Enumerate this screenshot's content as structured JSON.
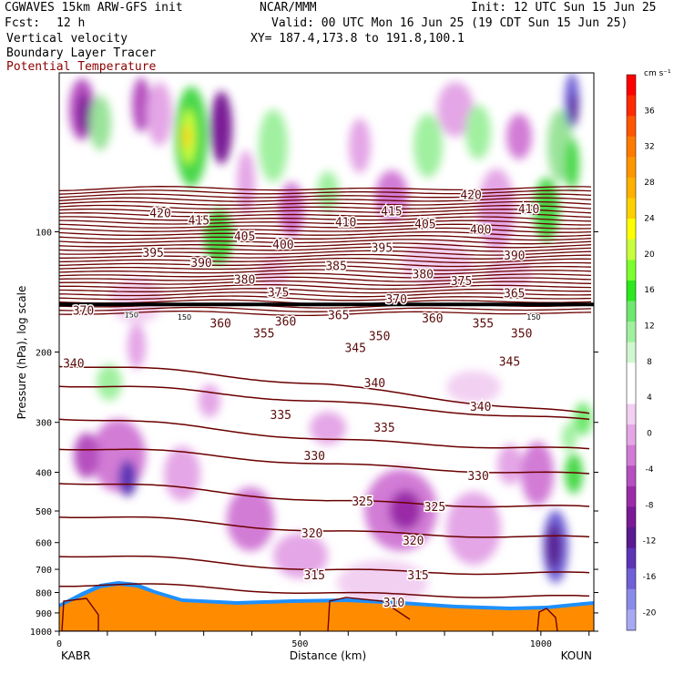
{
  "header": {
    "model": "CGWAVES 15km ARW-GFS init",
    "center": "NCAR/MMM",
    "init": "Init: 12 UTC Sun 15 Jun 25",
    "fcst_label": "Fcst:",
    "fcst_value": "12 h",
    "valid": "Valid: 00 UTC Mon 16 Jun 25 (19 CDT Sun 15 Jun 25)",
    "field1": "Vertical velocity",
    "field2": "Boundary Layer Tracer",
    "field3": "Potential Temperature",
    "xy": "XY= 187.4,173.8 to 191.8,100.1"
  },
  "colors": {
    "theta": "#6b0000",
    "field3_text": "#8b0000",
    "tracer": "#ff8c00",
    "tropopause": "#000000"
  },
  "chart_data": {
    "type": "heatmap",
    "xlabel": "Distance (km)",
    "ylabel": "Pressure (hPa), log scale",
    "x_ticks": [
      0,
      500,
      1000
    ],
    "xlim": [
      0,
      1110
    ],
    "y_ticks": [
      100,
      200,
      300,
      400,
      500,
      600,
      700,
      800,
      900,
      1000
    ],
    "y_scale": "log",
    "ylim": [
      1000,
      40
    ],
    "endpoints": {
      "left": "KABR",
      "right": "KOUN"
    },
    "colorbar": {
      "unit_label": "cm s⁻¹",
      "ticks": [
        36,
        32,
        28,
        24,
        20,
        16,
        12,
        8,
        4,
        0,
        -4,
        -8,
        -12,
        -16,
        -20
      ],
      "colors": [
        "#ff0000",
        "#ff2a00",
        "#ff5500",
        "#ff7a00",
        "#ff9600",
        "#ffb000",
        "#ffd000",
        "#ffff00",
        "#c8ff3c",
        "#7dff2d",
        "#2de81e",
        "#6fe86f",
        "#a0f0a0",
        "#d0f8d0",
        "#ffffff",
        "#ffffff",
        "#f2d0f2",
        "#e4a6e6",
        "#d27bd6",
        "#b64fc0",
        "#9a2ca8",
        "#7a1a96",
        "#5a1a90",
        "#5c35b6",
        "#6f60d6",
        "#8a8ae8",
        "#a8a8f2"
      ]
    },
    "theta_labels": [
      {
        "text": "420",
        "x": 210,
        "p": 90
      },
      {
        "text": "415",
        "x": 290,
        "p": 94
      },
      {
        "text": "405",
        "x": 385,
        "p": 103
      },
      {
        "text": "400",
        "x": 465,
        "p": 108
      },
      {
        "text": "410",
        "x": 595,
        "p": 95
      },
      {
        "text": "415",
        "x": 690,
        "p": 89
      },
      {
        "text": "405",
        "x": 760,
        "p": 96
      },
      {
        "text": "420",
        "x": 855,
        "p": 81
      },
      {
        "text": "400",
        "x": 875,
        "p": 99
      },
      {
        "text": "410",
        "x": 975,
        "p": 88
      },
      {
        "text": "395",
        "x": 195,
        "p": 113
      },
      {
        "text": "390",
        "x": 295,
        "p": 120
      },
      {
        "text": "380",
        "x": 385,
        "p": 132
      },
      {
        "text": "375",
        "x": 455,
        "p": 142
      },
      {
        "text": "385",
        "x": 575,
        "p": 122
      },
      {
        "text": "395",
        "x": 670,
        "p": 110
      },
      {
        "text": "380",
        "x": 755,
        "p": 128
      },
      {
        "text": "375",
        "x": 835,
        "p": 133
      },
      {
        "text": "390",
        "x": 945,
        "p": 115
      },
      {
        "text": "370",
        "x": 700,
        "p": 148
      },
      {
        "text": "365",
        "x": 945,
        "p": 143
      },
      {
        "text": "370",
        "x": 50,
        "p": 158
      },
      {
        "text": "365",
        "x": 580,
        "p": 162
      },
      {
        "text": "360",
        "x": 470,
        "p": 168
      },
      {
        "text": "360",
        "x": 775,
        "p": 165
      },
      {
        "text": "355",
        "x": 880,
        "p": 170
      },
      {
        "text": "350",
        "x": 960,
        "p": 180
      },
      {
        "text": "360",
        "x": 335,
        "p": 170
      },
      {
        "text": "355",
        "x": 425,
        "p": 180
      },
      {
        "text": "350",
        "x": 665,
        "p": 183
      },
      {
        "text": "345",
        "x": 615,
        "p": 196
      },
      {
        "text": "345",
        "x": 935,
        "p": 212
      },
      {
        "text": "340",
        "x": 30,
        "p": 214
      },
      {
        "text": "340",
        "x": 655,
        "p": 240
      },
      {
        "text": "340",
        "x": 875,
        "p": 275
      },
      {
        "text": "335",
        "x": 460,
        "p": 288
      },
      {
        "text": "335",
        "x": 675,
        "p": 310
      },
      {
        "text": "330",
        "x": 530,
        "p": 365
      },
      {
        "text": "330",
        "x": 870,
        "p": 410
      },
      {
        "text": "325",
        "x": 630,
        "p": 475
      },
      {
        "text": "325",
        "x": 780,
        "p": 490
      },
      {
        "text": "320",
        "x": 525,
        "p": 570
      },
      {
        "text": "320",
        "x": 735,
        "p": 595
      },
      {
        "text": "315",
        "x": 530,
        "p": 725
      },
      {
        "text": "315",
        "x": 745,
        "p": 725
      },
      {
        "text": "310",
        "x": 695,
        "p": 850
      }
    ],
    "tropopause_label": "150"
  }
}
